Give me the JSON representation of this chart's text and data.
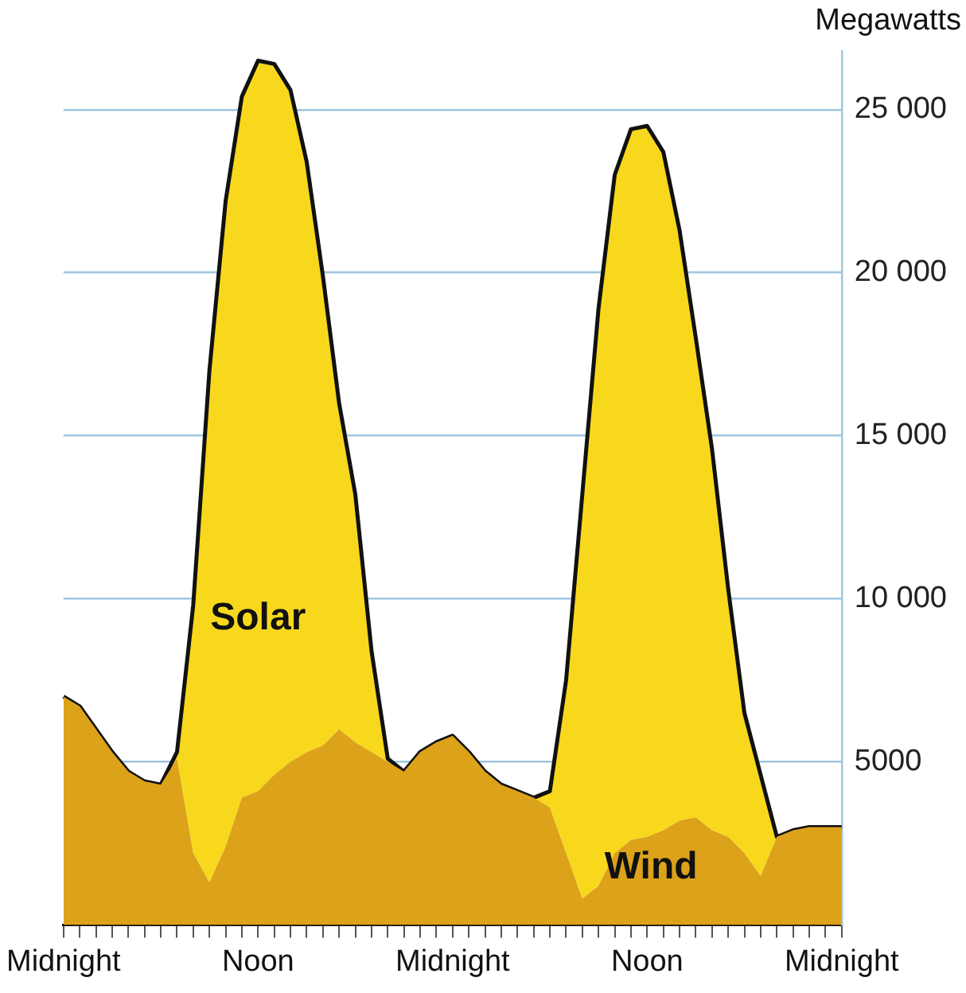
{
  "chart_data": {
    "type": "area",
    "stacked": true,
    "ylabel": "Megawatts",
    "categories": [
      "Midnight",
      null,
      null,
      null,
      null,
      null,
      null,
      null,
      null,
      null,
      null,
      null,
      "Noon",
      null,
      null,
      null,
      null,
      null,
      null,
      null,
      null,
      null,
      null,
      null,
      "Midnight",
      null,
      null,
      null,
      null,
      null,
      null,
      null,
      null,
      null,
      null,
      null,
      "Noon",
      null,
      null,
      null,
      null,
      null,
      null,
      null,
      null,
      null,
      null,
      null,
      "Midnight"
    ],
    "series": [
      {
        "name": "Wind",
        "color": "#dba21a",
        "values": [
          7000,
          6700,
          6000,
          5300,
          4700,
          4400,
          4300,
          5100,
          2200,
          1300,
          2400,
          3900,
          4100,
          4600,
          5000,
          5300,
          5500,
          6000,
          5600,
          5300,
          5000,
          4700,
          5300,
          5600,
          5800,
          5300,
          4700,
          4300,
          4100,
          3900,
          3600,
          2200,
          800,
          1200,
          2200,
          2600,
          2700,
          2900,
          3200,
          3300,
          2900,
          2700,
          2200,
          1500,
          2700,
          2900,
          3000,
          3000,
          3000
        ]
      },
      {
        "name": "Solar",
        "color": "#f8d81c",
        "values": [
          0,
          0,
          0,
          0,
          0,
          0,
          0,
          200,
          7600,
          15700,
          19800,
          21500,
          22400,
          21800,
          20600,
          18100,
          14400,
          10000,
          7600,
          3100,
          100,
          0,
          0,
          0,
          0,
          0,
          0,
          0,
          0,
          0,
          500,
          5300,
          12400,
          17700,
          20800,
          21800,
          21800,
          20800,
          18100,
          14700,
          11700,
          7600,
          4300,
          3100,
          0,
          0,
          0,
          0,
          0
        ]
      }
    ],
    "ylim": [
      0,
      26800
    ],
    "yticks": [
      5000,
      {
        "value": 10000,
        "label": "10 000"
      },
      {
        "value": 15000,
        "label": "15 000"
      },
      {
        "value": 20000,
        "label": "20 000"
      },
      {
        "value": 25000,
        "label": "25 000"
      }
    ],
    "grid": "y",
    "legend": false,
    "marker": "none",
    "line_style": "solid"
  }
}
